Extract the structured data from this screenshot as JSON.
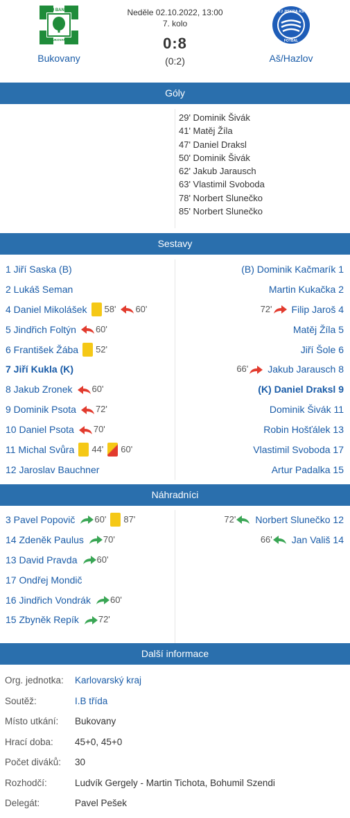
{
  "match": {
    "home": {
      "name": "Bukovany",
      "logo_text": "TJ BANÍK",
      "logo_text_bottom": "BUKOVANY"
    },
    "away": {
      "name": "Aš/Hazlov",
      "logo_text": "TJ JISKRA AŠ",
      "logo_text_bottom": "FOTBAL"
    },
    "date": "Neděle 02.10.2022, 13:00",
    "round": "7. kolo",
    "score": "0:8",
    "halftime": "(0:2)"
  },
  "sections": {
    "goals": "Góly",
    "lineups": "Sestavy",
    "substitutes": "Náhradníci",
    "info": "Další informace"
  },
  "colors": {
    "bar": "#2a6fad",
    "link": "#1a5ca8",
    "card_yellow": "#f5c816",
    "card_red": "#e23b2e",
    "arrow_out": "#e23b2e",
    "arrow_in": "#3aa655"
  },
  "goals": {
    "home": [],
    "away": [
      "29' Dominik Šivák",
      "41' Matěj Žíla",
      "47' Daniel Draksl",
      "50' Dominik Šivák",
      "62' Jakub Jarausch",
      "63' Vlastimil Svoboda",
      "78' Norbert Slunečko",
      "85' Norbert Slunečko"
    ]
  },
  "lineups": {
    "home": [
      {
        "name": "1 Jiří Saska (B)",
        "events": []
      },
      {
        "name": "2 Lukáš Seman",
        "events": []
      },
      {
        "name": "4 Daniel Mikolášek",
        "events": [
          {
            "type": "yellow",
            "text": "58'"
          },
          {
            "type": "out",
            "text": "60'"
          }
        ]
      },
      {
        "name": "5 Jindřich Foltýn",
        "events": [
          {
            "type": "out",
            "text": "60'"
          }
        ]
      },
      {
        "name": "6 František Žába",
        "events": [
          {
            "type": "yellow",
            "text": "52'"
          }
        ]
      },
      {
        "name": "7 Jiří Kukla (K)",
        "bold": true,
        "events": []
      },
      {
        "name": "8 Jakub Zronek",
        "events": [
          {
            "type": "out",
            "text": "60'"
          }
        ]
      },
      {
        "name": "9 Dominik Psota",
        "events": [
          {
            "type": "out",
            "text": "72'"
          }
        ]
      },
      {
        "name": "10 Daniel Psota",
        "events": [
          {
            "type": "out",
            "text": "70'"
          }
        ]
      },
      {
        "name": "11 Michal Svůra",
        "events": [
          {
            "type": "yellow",
            "text": "44'"
          },
          {
            "type": "redyellow",
            "text": "60'"
          }
        ]
      },
      {
        "name": "12 Jaroslav Bauchner",
        "events": []
      }
    ],
    "away": [
      {
        "name": "(B) Dominik Kačmarík 1",
        "events": []
      },
      {
        "name": "Martin Kukačka 2",
        "events": []
      },
      {
        "name": "Filip Jaroš 4",
        "events": [
          {
            "type": "out",
            "text": "72'"
          }
        ]
      },
      {
        "name": "Matěj Žíla 5",
        "events": []
      },
      {
        "name": "Jiří Šole 6",
        "events": []
      },
      {
        "name": "Jakub Jarausch 8",
        "events": [
          {
            "type": "out",
            "text": "66'"
          }
        ]
      },
      {
        "name": "(K) Daniel Draksl 9",
        "bold": true,
        "events": []
      },
      {
        "name": "Dominik Šivák 11",
        "events": []
      },
      {
        "name": "Robin Hošťálek 13",
        "events": []
      },
      {
        "name": "Vlastimil Svoboda 17",
        "events": []
      },
      {
        "name": "Artur Padalka 15",
        "events": []
      }
    ]
  },
  "substitutes": {
    "home": [
      {
        "name": "3 Pavel Popovič",
        "events": [
          {
            "type": "in",
            "text": "60'"
          },
          {
            "type": "yellow",
            "text": "87'"
          }
        ]
      },
      {
        "name": "14 Zdeněk Paulus",
        "events": [
          {
            "type": "in",
            "text": "70'"
          }
        ]
      },
      {
        "name": "13 David Pravda",
        "events": [
          {
            "type": "in",
            "text": "60'"
          }
        ]
      },
      {
        "name": "17 Ondřej Mondič",
        "events": []
      },
      {
        "name": "16 Jindřich Vondrák",
        "events": [
          {
            "type": "in",
            "text": "60'"
          }
        ]
      },
      {
        "name": "15 Zbyněk Repík",
        "events": [
          {
            "type": "in",
            "text": "72'"
          }
        ]
      }
    ],
    "away": [
      {
        "name": "Norbert Slunečko 12",
        "events": [
          {
            "type": "in",
            "text": "72'"
          }
        ]
      },
      {
        "name": "Jan Vališ 14",
        "events": [
          {
            "type": "in",
            "text": "66'"
          }
        ]
      }
    ]
  },
  "info": [
    {
      "label": "Org. jednotka:",
      "value": "Karlovarský kraj",
      "link": true
    },
    {
      "label": "Soutěž:",
      "value": "I.B třída",
      "link": true
    },
    {
      "label": "Místo utkání:",
      "value": "Bukovany",
      "link": false
    },
    {
      "label": "Hrací doba:",
      "value": "45+0, 45+0",
      "link": false
    },
    {
      "label": "Počet diváků:",
      "value": "30",
      "link": false
    },
    {
      "label": "Rozhodčí:",
      "value": "Ludvík Gergely - Martin Tichota, Bohumil Szendi",
      "link": false
    },
    {
      "label": "Delegát:",
      "value": "Pavel Pešek",
      "link": false
    }
  ]
}
